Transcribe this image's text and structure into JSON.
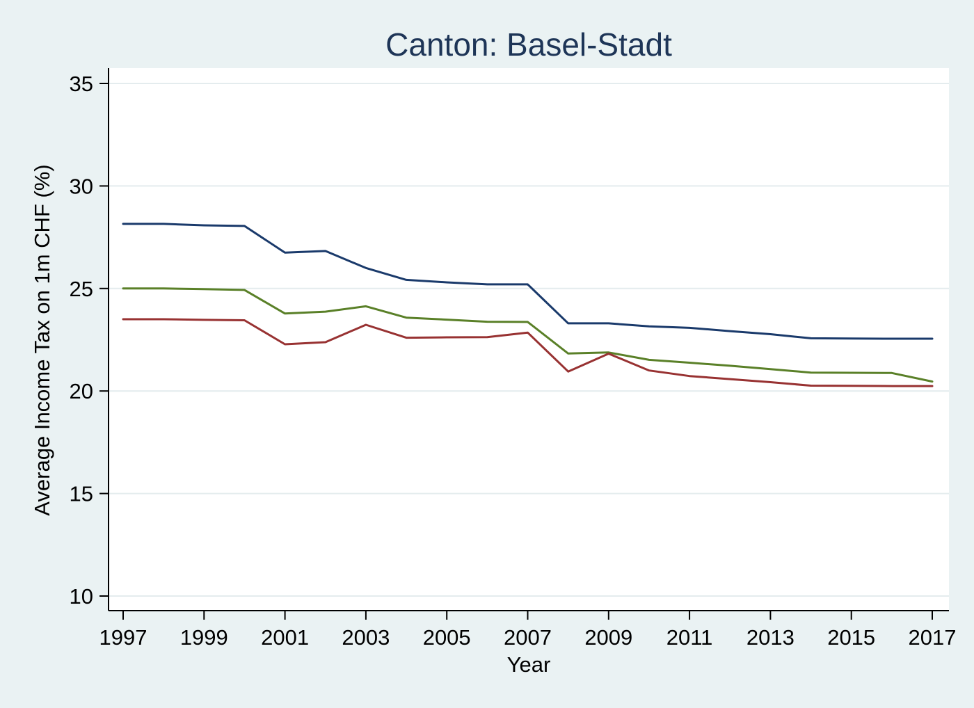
{
  "chart_data": {
    "type": "line",
    "title": "Canton: Basel-Stadt",
    "xlabel": "Year",
    "ylabel": "Average Income Tax on 1m CHF (%)",
    "xlim": [
      1997,
      2017
    ],
    "ylim": [
      10,
      35
    ],
    "x_ticks": [
      1997,
      1999,
      2001,
      2003,
      2005,
      2007,
      2009,
      2011,
      2013,
      2015,
      2017
    ],
    "y_ticks": [
      10,
      15,
      20,
      25,
      30,
      35
    ],
    "grid": true,
    "legend": "none",
    "x": [
      1997,
      1998,
      1999,
      2000,
      2001,
      2002,
      2003,
      2004,
      2005,
      2006,
      2007,
      2008,
      2009,
      2010,
      2011,
      2012,
      2013,
      2014,
      2015,
      2016,
      2017
    ],
    "series": [
      {
        "color": "#1a3a6b",
        "values": [
          28.15,
          28.15,
          28.08,
          28.05,
          26.75,
          26.83,
          26.0,
          25.42,
          25.3,
          25.2,
          25.2,
          23.3,
          23.3,
          23.15,
          23.08,
          22.92,
          22.77,
          22.57,
          22.56,
          22.55,
          22.55
        ]
      },
      {
        "color": "#5a8028",
        "values": [
          25.0,
          25.0,
          24.97,
          24.93,
          23.78,
          23.87,
          24.13,
          23.58,
          23.48,
          23.38,
          23.37,
          21.83,
          21.88,
          21.52,
          21.38,
          21.23,
          21.07,
          20.9,
          20.89,
          20.88,
          20.46
        ]
      },
      {
        "color": "#983232",
        "values": [
          23.5,
          23.5,
          23.47,
          23.45,
          22.28,
          22.38,
          23.23,
          22.6,
          22.62,
          22.63,
          22.85,
          20.95,
          21.82,
          21.0,
          20.73,
          20.58,
          20.43,
          20.26,
          20.25,
          20.24,
          20.24
        ]
      }
    ]
  }
}
